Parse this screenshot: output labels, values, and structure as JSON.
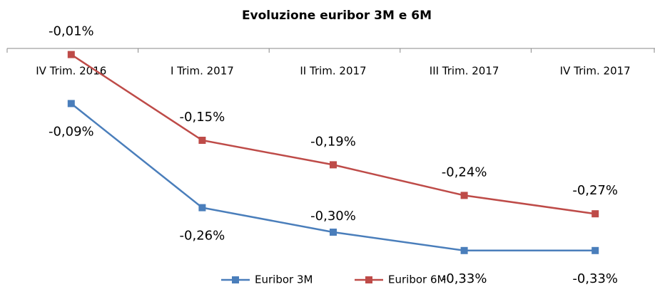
{
  "chart_data": {
    "type": "line",
    "title": "Evoluzione euribor  3M e 6M",
    "categories": [
      "IV Trim. 2016",
      "I Trim. 2017",
      "II Trim. 2017",
      "III Trim. 2017",
      "IV Trim. 2017"
    ],
    "series": [
      {
        "name": "Euribor 3M",
        "color": "#4a7ebb",
        "values": [
          -0.09,
          -0.26,
          -0.3,
          -0.33,
          -0.33
        ],
        "value_labels": [
          "-0,09%",
          "-0,26%",
          "-0,30%",
          "-0,33%",
          "-0,33%"
        ]
      },
      {
        "name": "Euribor 6M",
        "color": "#be4b48",
        "values": [
          -0.01,
          -0.15,
          -0.19,
          -0.24,
          -0.27
        ],
        "value_labels": [
          "-0,01%",
          "-0,15%",
          "-0,19%",
          "-0,24%",
          "-0,27%"
        ]
      }
    ],
    "ylim": [
      -0.35,
      0
    ],
    "legend": "bottom"
  }
}
